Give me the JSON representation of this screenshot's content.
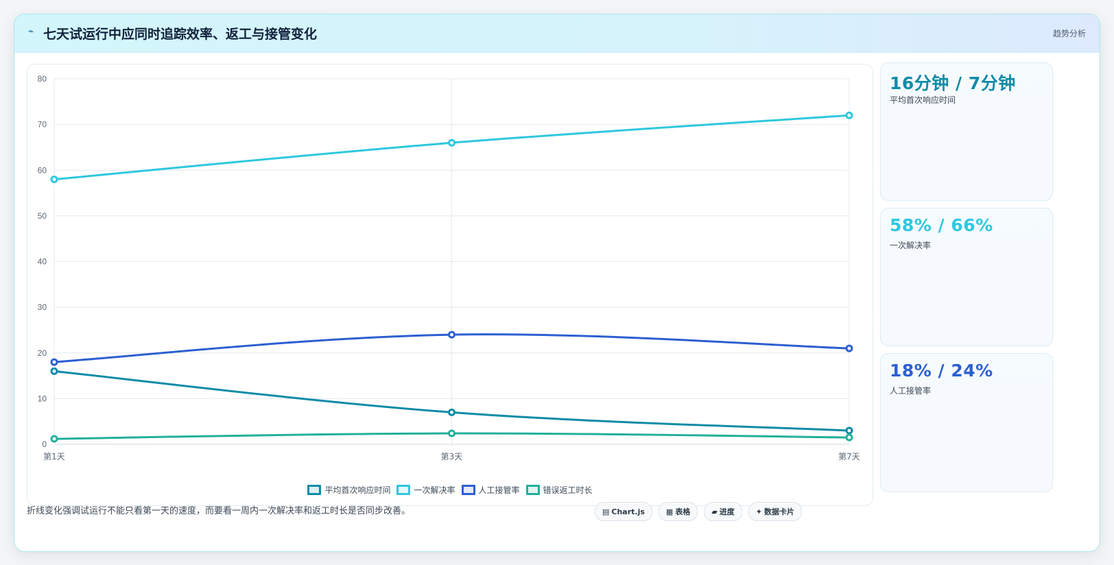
{
  "header": {
    "icon": "lightning-icon",
    "title": "七天试运行中应同时追踪效率、返工与接管变化",
    "tag": "趋势分析"
  },
  "chart_data": {
    "type": "line",
    "categories": [
      "第1天",
      "第3天",
      "第7天"
    ],
    "ylim": [
      0,
      80
    ],
    "yticks": [
      0,
      10,
      20,
      30,
      40,
      50,
      60,
      70,
      80
    ],
    "grid": true,
    "legend_position": "bottom",
    "series": [
      {
        "name": "平均首次响应时间",
        "values": [
          16,
          7,
          3
        ],
        "color": "#0e8ca7"
      },
      {
        "name": "一次解决率",
        "values": [
          58,
          66,
          72
        ],
        "color": "#2ec8de"
      },
      {
        "name": "人工接管率",
        "values": [
          18,
          24,
          21
        ],
        "color": "#2c5fd1"
      },
      {
        "name": "错误返工时长",
        "values": [
          1.2,
          2.4,
          1.5
        ],
        "color": "#22b09a"
      }
    ]
  },
  "stats": [
    {
      "value": "16分钟 / 7分钟",
      "label": "平均首次响应时间",
      "color": "#0e8ca7"
    },
    {
      "value": "58% / 66%",
      "label": "一次解决率",
      "color": "#2ec8de"
    },
    {
      "value": "18% / 24%",
      "label": "人工接管率",
      "color": "#2c5fd1"
    }
  ],
  "footer": {
    "note": "折线变化强调试运行不能只看第一天的速度，而要看一周内一次解决率和返工时长是否同步改善。",
    "tools": [
      {
        "icon": "▤",
        "label": "Chart.js"
      },
      {
        "icon": "▦",
        "label": "表格"
      },
      {
        "icon": "▰",
        "label": "进度"
      },
      {
        "icon": "✦",
        "label": "数据卡片"
      }
    ]
  }
}
